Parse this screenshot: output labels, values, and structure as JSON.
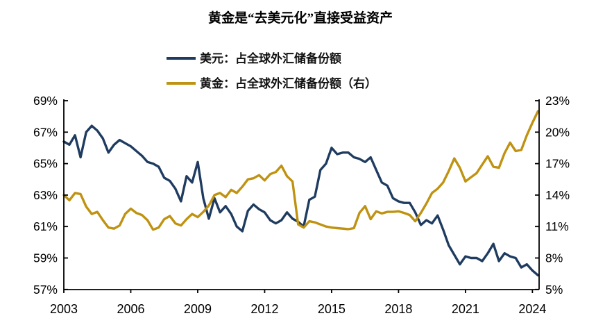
{
  "title": "黄金是“去美元化”直接受益资产",
  "legend": {
    "items": [
      {
        "label": "美元：占全球外汇储备份额",
        "color": "#1f3c60"
      },
      {
        "label": "黄金：占全球外汇储备份额（右）",
        "color": "#bf9211"
      }
    ]
  },
  "colors": {
    "usd_line": "#1f3c60",
    "gold_line": "#bf9211",
    "axis": "#000000"
  },
  "chart_data": {
    "type": "line",
    "title": "黄金是“去美元化”直接受益资产",
    "x_start": 2003.0,
    "x_step": 0.25,
    "x_axis": {
      "min": 2003.0,
      "max": 2024.3,
      "tick_values": [
        2003,
        2006,
        2009,
        2012,
        2015,
        2018,
        2021,
        2024
      ],
      "tick_labels": [
        "2003",
        "2006",
        "2009",
        "2012",
        "2015",
        "2018",
        "2021",
        "2024"
      ]
    },
    "left_axis": {
      "min": 57,
      "max": 69,
      "tick_labels": [
        "69%",
        "67%",
        "65%",
        "63%",
        "61%",
        "59%",
        "57%"
      ],
      "tick_values": [
        69,
        67,
        65,
        63,
        61,
        59,
        57
      ]
    },
    "right_axis": {
      "min": 5,
      "max": 23,
      "tick_labels": [
        "23%",
        "20%",
        "17%",
        "14%",
        "11%",
        "8%",
        "5%"
      ],
      "tick_values": [
        23,
        20,
        17,
        14,
        11,
        8,
        5
      ]
    },
    "grid": false,
    "legend_position": "top-left",
    "series": [
      {
        "name": "美元：占全球外汇储备份额",
        "axis": "left",
        "color": "#1f3c60",
        "values": [
          66.4,
          66.2,
          66.8,
          65.4,
          67.0,
          67.4,
          67.1,
          66.6,
          65.7,
          66.2,
          66.5,
          66.3,
          66.1,
          65.8,
          65.5,
          65.1,
          65.0,
          64.8,
          64.1,
          63.9,
          63.4,
          62.6,
          64.2,
          63.8,
          65.1,
          62.8,
          61.5,
          62.8,
          61.9,
          62.3,
          61.8,
          61.0,
          60.7,
          62.0,
          62.4,
          62.1,
          61.9,
          61.4,
          61.2,
          61.4,
          61.9,
          61.5,
          61.3,
          61.0,
          62.7,
          62.9,
          64.6,
          65.0,
          66.0,
          65.6,
          65.7,
          65.7,
          65.4,
          65.3,
          65.1,
          65.4,
          64.6,
          63.8,
          63.6,
          62.8,
          62.6,
          62.5,
          62.5,
          61.9,
          61.1,
          61.4,
          61.2,
          61.7,
          60.8,
          59.8,
          59.2,
          58.6,
          59.1,
          59.0,
          59.0,
          58.8,
          59.3,
          59.9,
          58.8,
          59.3,
          59.1,
          59.0,
          58.4,
          58.6,
          58.2,
          57.9
        ]
      },
      {
        "name": "黄金：占全球外汇储备份额（右）",
        "axis": "right",
        "color": "#bf9211",
        "values": [
          14.0,
          13.5,
          14.2,
          14.1,
          12.9,
          12.2,
          12.4,
          11.6,
          10.9,
          10.8,
          11.1,
          12.2,
          12.7,
          12.3,
          12.1,
          11.6,
          10.7,
          10.9,
          11.7,
          12.0,
          11.3,
          11.1,
          11.7,
          12.2,
          11.9,
          12.4,
          13.0,
          14.0,
          14.2,
          13.8,
          14.5,
          14.2,
          14.8,
          15.5,
          15.6,
          15.9,
          15.4,
          16.0,
          16.2,
          16.8,
          15.8,
          15.3,
          11.2,
          10.9,
          11.5,
          11.4,
          11.2,
          11.0,
          10.9,
          10.85,
          10.8,
          10.75,
          10.85,
          12.3,
          12.95,
          11.7,
          12.45,
          12.25,
          12.4,
          12.4,
          12.45,
          12.3,
          12.1,
          11.5,
          12.3,
          13.2,
          14.2,
          14.6,
          15.2,
          16.3,
          17.5,
          16.6,
          15.3,
          15.7,
          16.1,
          16.9,
          17.7,
          16.7,
          16.6,
          18.0,
          19.0,
          18.2,
          18.3,
          19.7,
          20.9,
          22.0
        ]
      }
    ]
  }
}
